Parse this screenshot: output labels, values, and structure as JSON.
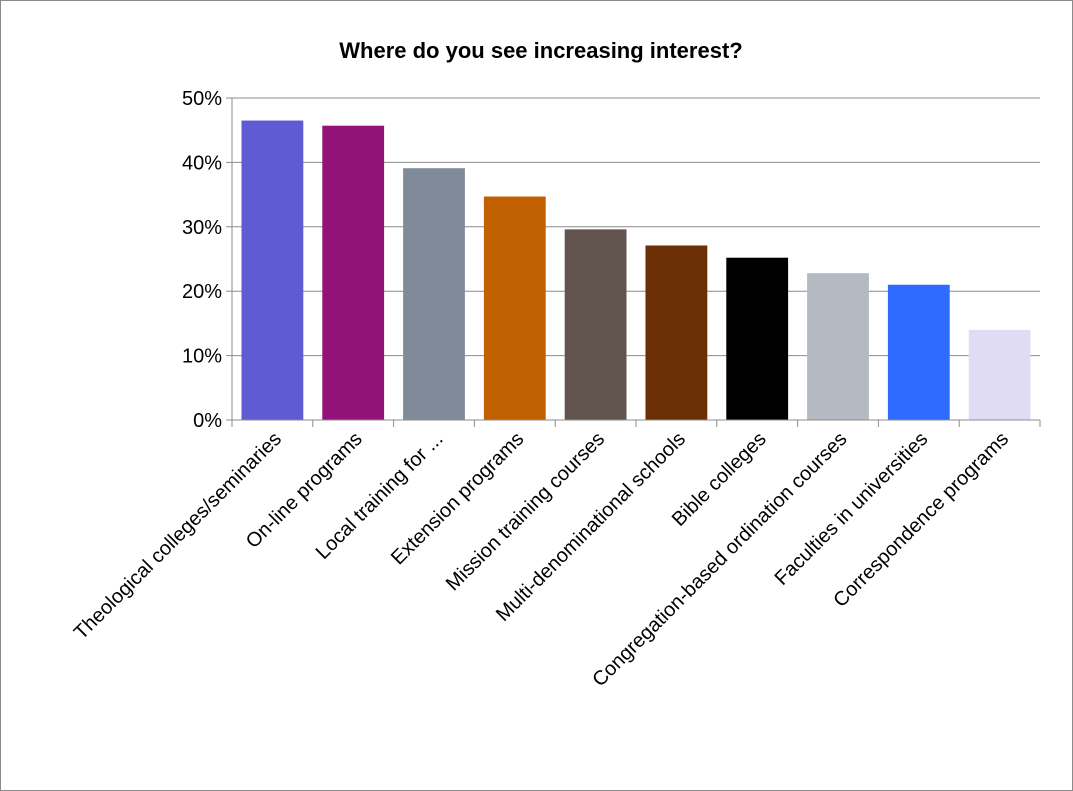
{
  "chart_data": {
    "type": "bar",
    "title": "Where do you see increasing interest?",
    "xlabel": "",
    "ylabel": "",
    "ylim": [
      0,
      50
    ],
    "y_ticks": [
      0,
      10,
      20,
      30,
      40,
      50
    ],
    "y_tick_labels": [
      "0%",
      "10%",
      "20%",
      "30%",
      "40%",
      "50%"
    ],
    "grid": true,
    "legend": "none",
    "categories": [
      "Theological colleges/seminaries",
      "On-line programs",
      "Local training for ...",
      "Extension programs",
      "Mission training courses",
      "Multi-denominational schools",
      "Bible colleges",
      "Congregation-based ordination courses",
      "Faculties in universities",
      "Correspondence programs"
    ],
    "values": [
      46.5,
      45.7,
      39.1,
      34.7,
      29.6,
      27.1,
      25.2,
      22.8,
      21.0,
      14.0
    ],
    "colors": [
      "#5f5bd3",
      "#93127a",
      "#808b99",
      "#c06000",
      "#61544f",
      "#6a2f05",
      "#000000",
      "#b5b9c1",
      "#2f6bff",
      "#e1dcf6"
    ]
  }
}
